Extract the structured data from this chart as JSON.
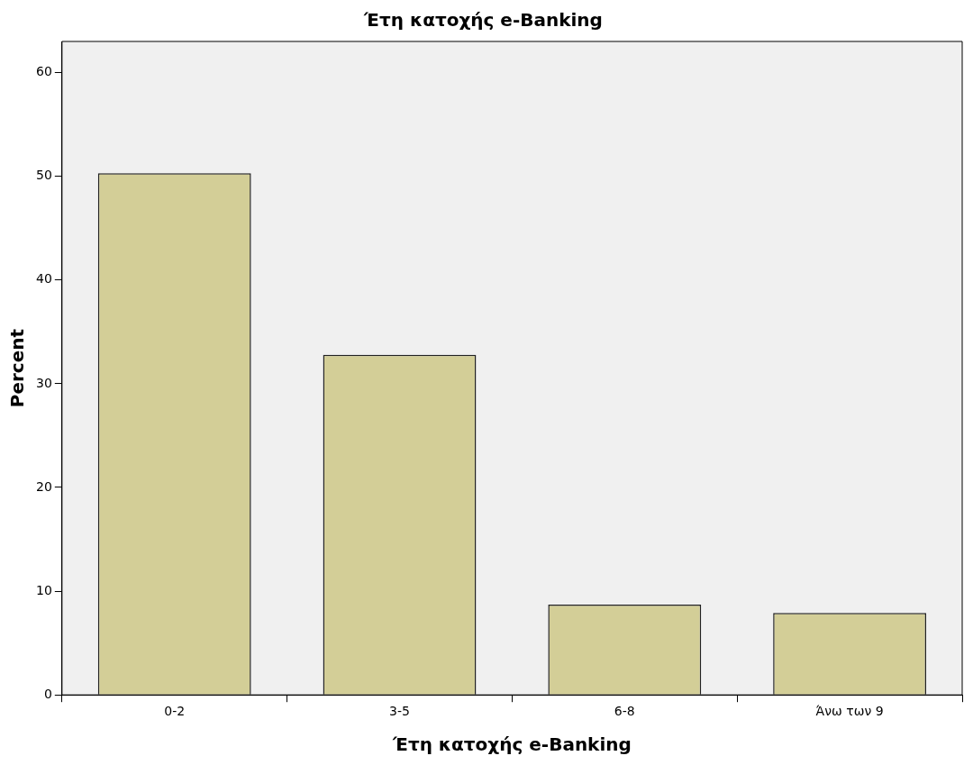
{
  "chart_data": {
    "type": "bar",
    "title": "Έτη κατοχής e-Banking",
    "xlabel": "Έτη κατοχής e-Banking",
    "ylabel": "Percent",
    "categories": [
      "0-2",
      "3-5",
      "6-8",
      "Άνω των 9"
    ],
    "values": [
      50.3,
      32.8,
      8.7,
      7.9
    ],
    "color": "#d3ce97",
    "ylim": [
      0,
      63
    ],
    "yticks": [
      0,
      10,
      20,
      30,
      40,
      50,
      60
    ],
    "grid": false,
    "legend": false
  }
}
